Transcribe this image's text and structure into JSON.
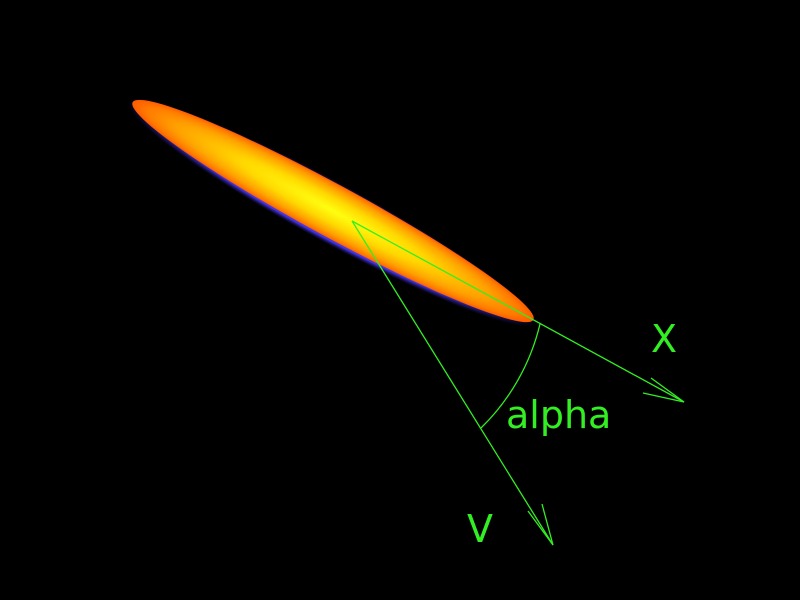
{
  "diagram": {
    "labels": {
      "x_axis": "X",
      "velocity": "V",
      "angle": "alpha"
    },
    "colors": {
      "background": "#000000",
      "annotation": "#33ee22",
      "body_core": "#ffff00",
      "body_mid": "#ffb000",
      "body_edge": "#ff6a00",
      "body_rim": "#6a5cff"
    },
    "elements": {
      "body": "elongated-glowing-body",
      "x_axis": "x-axis-arrow",
      "velocity": "velocity-vector-arrow",
      "angle": "angle-of-attack-arc"
    }
  }
}
